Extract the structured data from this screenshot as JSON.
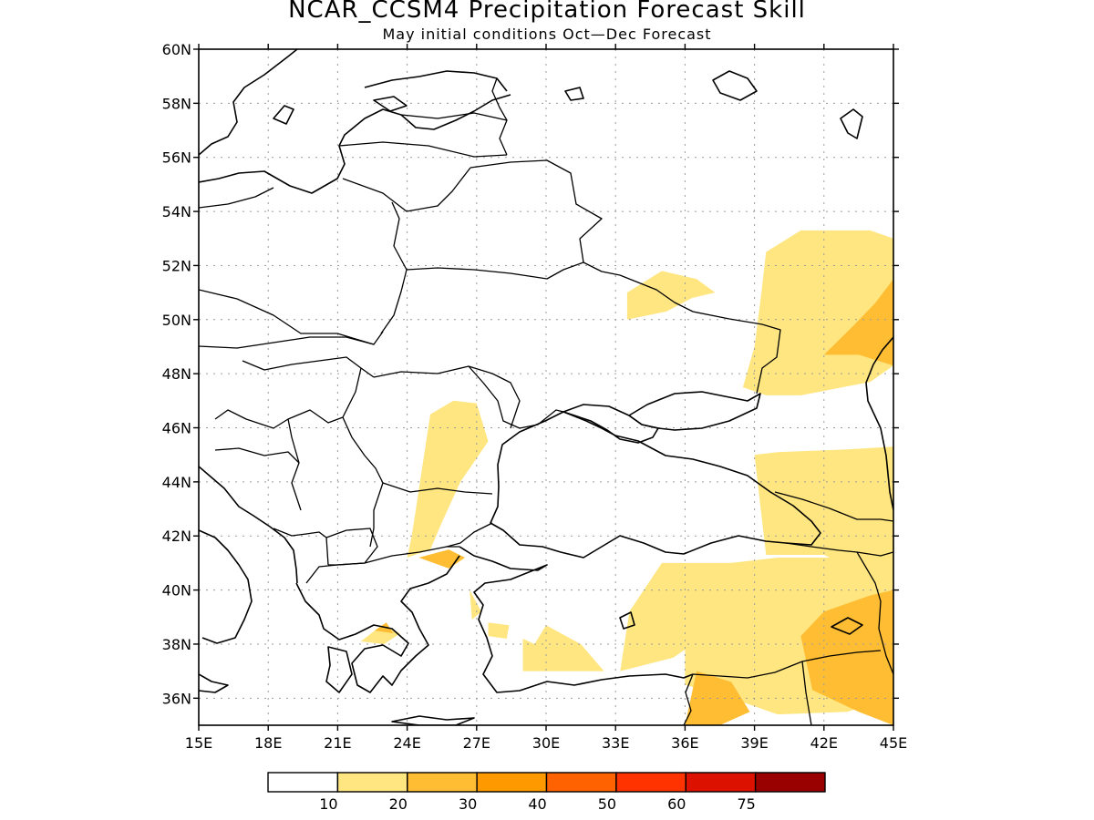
{
  "title": "NCAR_CCSM4 Precipitation Forecast Skill",
  "subtitle": "May initial conditions  Oct—Dec Forecast",
  "map": {
    "lat_range": [
      35,
      60
    ],
    "lon_range": [
      15,
      45
    ],
    "lat_ticks": [
      {
        "value": 60,
        "label": "60N"
      },
      {
        "value": 58,
        "label": "58N"
      },
      {
        "value": 56,
        "label": "56N"
      },
      {
        "value": 54,
        "label": "54N"
      },
      {
        "value": 52,
        "label": "52N"
      },
      {
        "value": 50,
        "label": "50N"
      },
      {
        "value": 48,
        "label": "48N"
      },
      {
        "value": 46,
        "label": "46N"
      },
      {
        "value": 44,
        "label": "44N"
      },
      {
        "value": 42,
        "label": "42N"
      },
      {
        "value": 40,
        "label": "40N"
      },
      {
        "value": 38,
        "label": "38N"
      },
      {
        "value": 36,
        "label": "36N"
      }
    ],
    "lon_ticks": [
      {
        "value": 15,
        "label": "15E"
      },
      {
        "value": 18,
        "label": "18E"
      },
      {
        "value": 21,
        "label": "21E"
      },
      {
        "value": 24,
        "label": "24E"
      },
      {
        "value": 27,
        "label": "27E"
      },
      {
        "value": 30,
        "label": "30E"
      },
      {
        "value": 33,
        "label": "33E"
      },
      {
        "value": 36,
        "label": "36E"
      },
      {
        "value": 39,
        "label": "39E"
      },
      {
        "value": 42,
        "label": "42E"
      },
      {
        "value": 45,
        "label": "45E"
      }
    ],
    "grid": true
  },
  "skill_regions": [
    {
      "level": 1,
      "points": [
        [
          33.5,
          51
        ],
        [
          35,
          51.8
        ],
        [
          36.5,
          51.5
        ],
        [
          37.3,
          51
        ],
        [
          36.3,
          50.8
        ],
        [
          35.2,
          50.3
        ],
        [
          33.5,
          50
        ]
      ]
    },
    {
      "level": 1,
      "points": [
        [
          25,
          46.5
        ],
        [
          26,
          47
        ],
        [
          27,
          46.9
        ],
        [
          27.5,
          45.5
        ],
        [
          26.3,
          44
        ],
        [
          25.5,
          42.5
        ],
        [
          25,
          41.5
        ],
        [
          24,
          41.2
        ],
        [
          24.2,
          42
        ]
      ]
    },
    {
      "level": 1,
      "points": [
        [
          38.5,
          47.5
        ],
        [
          39,
          49
        ],
        [
          39.3,
          51
        ],
        [
          39.5,
          52.5
        ],
        [
          41,
          53.3
        ],
        [
          44,
          53.3
        ],
        [
          45,
          53
        ],
        [
          45,
          48.3
        ],
        [
          44,
          47.7
        ],
        [
          41,
          47.2
        ],
        [
          39.5,
          47.2
        ]
      ]
    },
    {
      "level": 1,
      "points": [
        [
          39,
          45
        ],
        [
          40,
          45.1
        ],
        [
          43,
          45.2
        ],
        [
          45,
          45.3
        ],
        [
          45,
          39
        ],
        [
          44,
          40.5
        ],
        [
          42,
          41.3
        ],
        [
          39.5,
          41.3
        ]
      ]
    },
    {
      "level": 1,
      "points": [
        [
          33.2,
          37
        ],
        [
          35.5,
          37.5
        ],
        [
          36,
          37.8
        ],
        [
          36,
          36.5
        ],
        [
          38,
          36
        ],
        [
          40,
          35.4
        ],
        [
          43,
          35.5
        ],
        [
          45,
          36
        ],
        [
          45,
          40
        ],
        [
          43,
          41.2
        ],
        [
          40,
          41.2
        ],
        [
          38,
          41
        ],
        [
          35,
          41
        ],
        [
          33.6,
          39.2
        ]
      ]
    },
    {
      "level": 1,
      "points": [
        [
          29,
          37
        ],
        [
          31,
          37
        ],
        [
          32.5,
          37
        ],
        [
          31.5,
          38
        ],
        [
          30,
          38.7
        ],
        [
          29.5,
          38
        ],
        [
          29,
          38.2
        ]
      ]
    },
    {
      "level": 1,
      "points": [
        [
          27.5,
          38.3
        ],
        [
          28.3,
          38.2
        ],
        [
          28.4,
          38.7
        ],
        [
          27.5,
          38.8
        ]
      ]
    },
    {
      "level": 1,
      "points": [
        [
          26.7,
          40
        ],
        [
          27.2,
          39.2
        ],
        [
          26.8,
          38.9
        ]
      ]
    },
    {
      "level": 1,
      "points": [
        [
          22,
          38.1
        ],
        [
          23,
          38
        ],
        [
          23.7,
          38.4
        ],
        [
          22.9,
          38.7
        ]
      ]
    },
    {
      "level": 2,
      "points": [
        [
          42,
          48.7
        ],
        [
          43.3,
          49.8
        ],
        [
          44.2,
          50.6
        ],
        [
          45,
          51.5
        ],
        [
          45,
          48.3
        ],
        [
          43.5,
          48.7
        ]
      ]
    },
    {
      "level": 2,
      "points": [
        [
          41,
          38.3
        ],
        [
          42,
          39.2
        ],
        [
          44,
          39.8
        ],
        [
          45,
          40
        ],
        [
          45,
          35
        ],
        [
          43.5,
          35.5
        ],
        [
          41.5,
          36.3
        ]
      ]
    },
    {
      "level": 2,
      "points": [
        [
          36,
          35
        ],
        [
          37.5,
          35
        ],
        [
          38.8,
          35.5
        ],
        [
          38,
          36.6
        ],
        [
          36.5,
          37
        ]
      ]
    },
    {
      "level": 2,
      "points": [
        [
          24.5,
          41.2
        ],
        [
          25.8,
          41.5
        ],
        [
          26.5,
          41.2
        ],
        [
          25.8,
          40.8
        ]
      ]
    },
    {
      "level": 2,
      "points": [
        [
          22.6,
          38.5
        ],
        [
          23.4,
          38.4
        ],
        [
          23.1,
          38.8
        ]
      ]
    }
  ],
  "colorbar": {
    "labels": [
      "10",
      "20",
      "30",
      "40",
      "50",
      "60",
      "75"
    ],
    "colors": [
      "#ffffff",
      "#ffe680",
      "#ffbd33",
      "#ff9900",
      "#ff6200",
      "#ff3300",
      "#dd1100",
      "#990000"
    ]
  }
}
